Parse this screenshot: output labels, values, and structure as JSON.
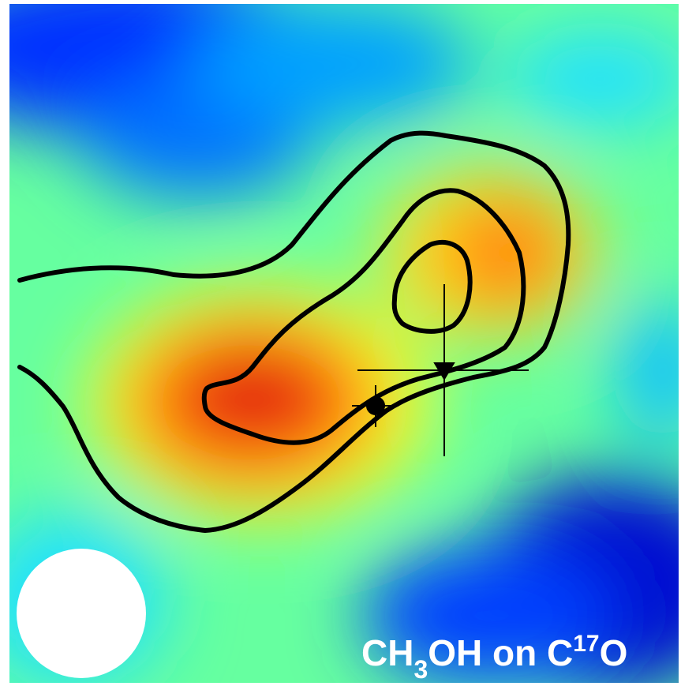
{
  "label": {
    "parts": [
      "CH",
      "3",
      "OH on C",
      "17",
      "O"
    ]
  }
}
